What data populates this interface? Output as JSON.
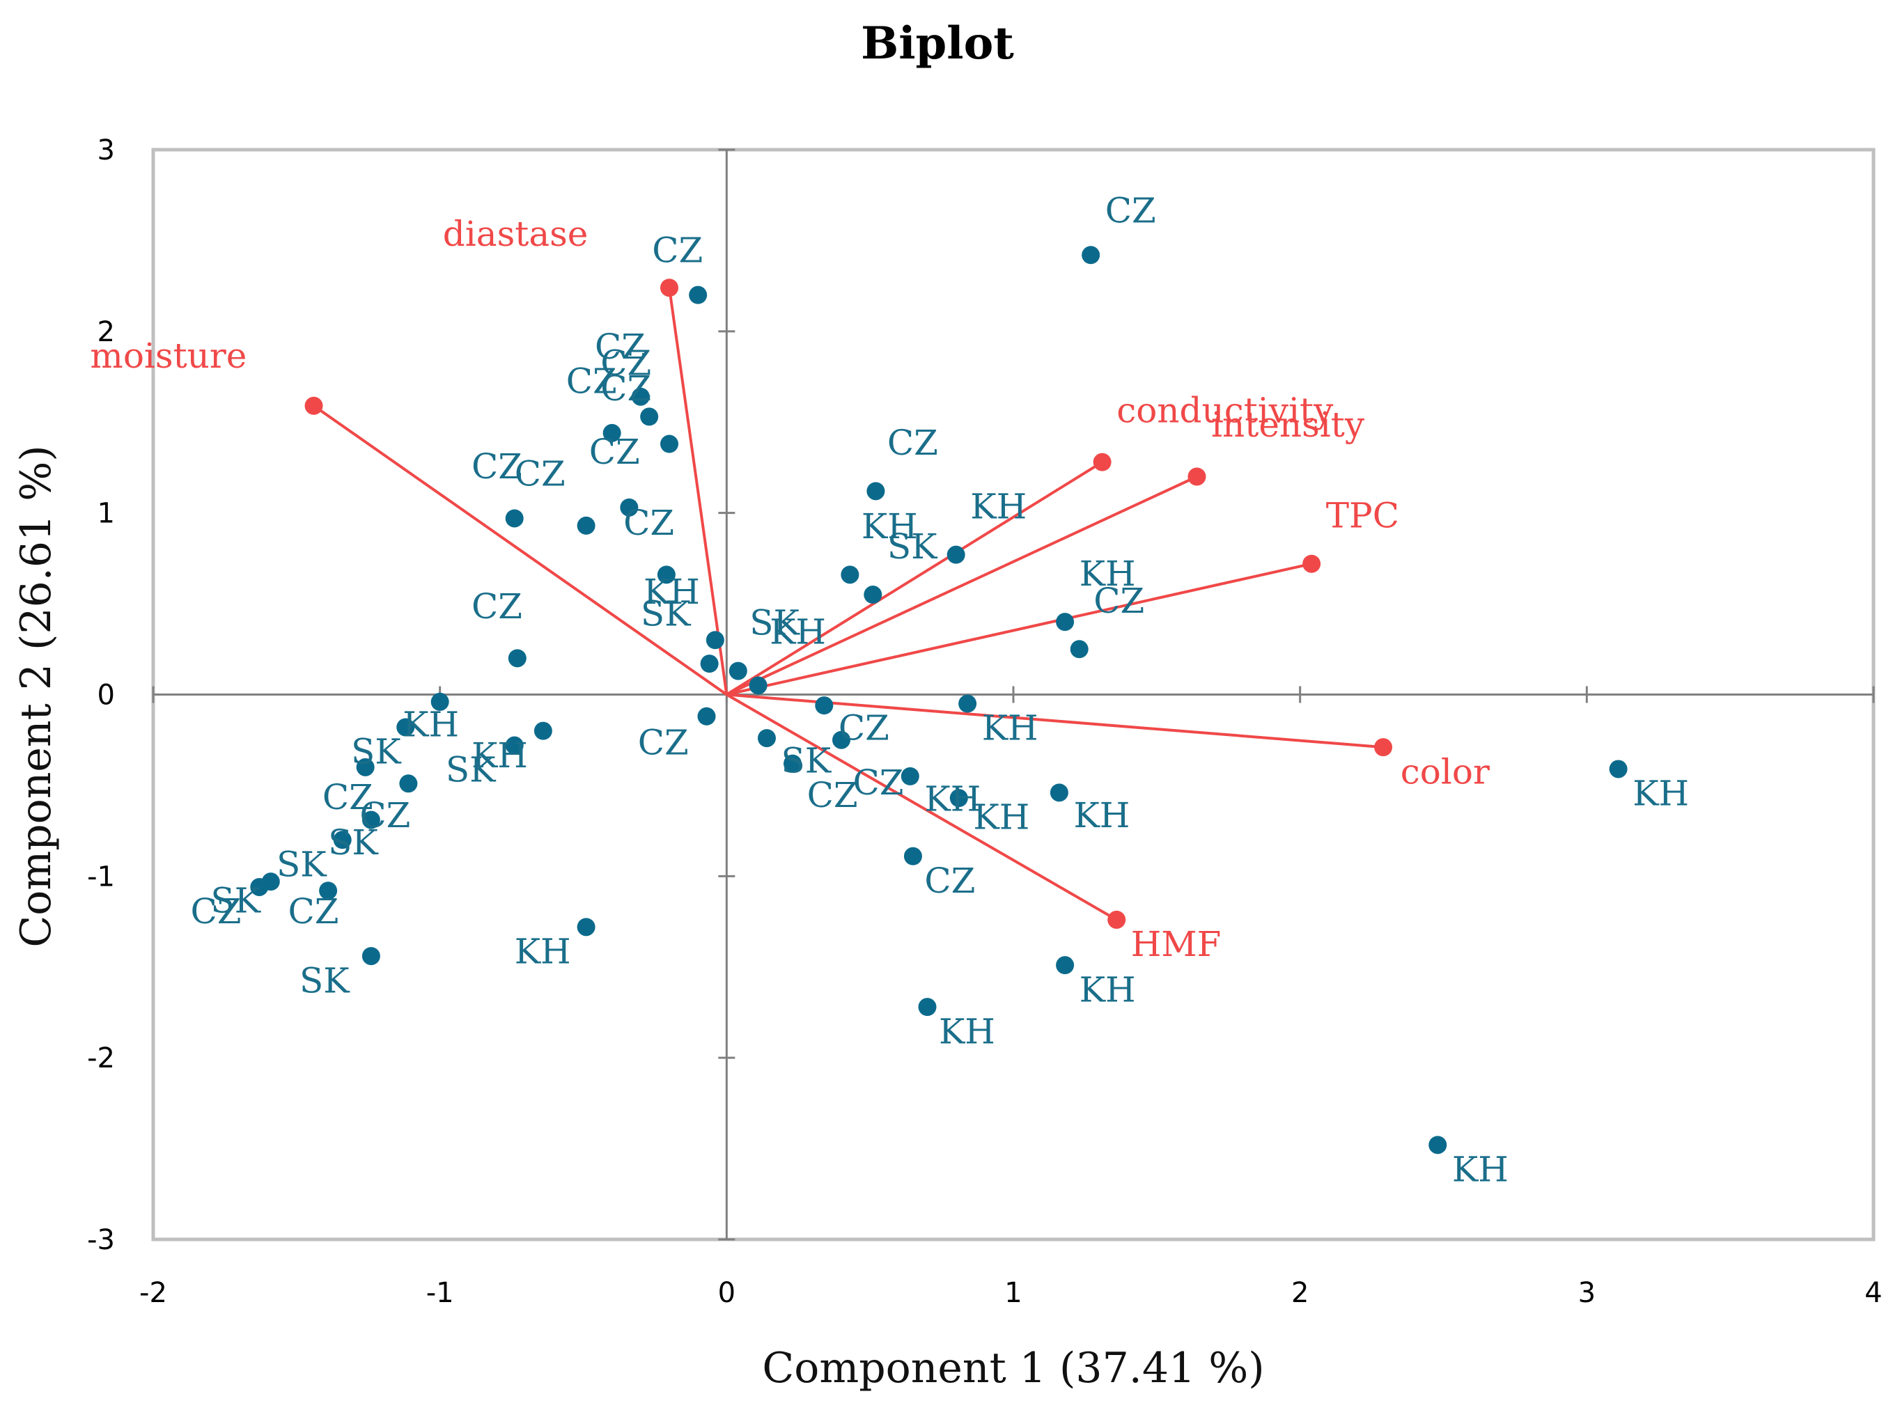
{
  "chart_data": {
    "type": "scatter",
    "title": "Biplot",
    "xlabel": "Component 1 (37.41 %)",
    "ylabel": "Component 2 (26.61 %)",
    "xlim": [
      -2,
      4
    ],
    "ylim": [
      -3,
      3
    ],
    "xticks": [
      -2,
      -1,
      0,
      1,
      2,
      3,
      4
    ],
    "yticks": [
      -3,
      -2,
      -1,
      0,
      1,
      2,
      3
    ],
    "colors": {
      "observations": "#0b6a8c",
      "observation_labels": "#1a6e8a",
      "variables": "#f04848",
      "axes": "#808080",
      "frame": "#bfbfbf"
    },
    "variables": [
      {
        "name": "diastase",
        "x": -0.2,
        "y": 2.24
      },
      {
        "name": "moisture",
        "x": -1.44,
        "y": 1.59
      },
      {
        "name": "conductivity",
        "x": 1.31,
        "y": 1.28
      },
      {
        "name": "intensity",
        "x": 1.64,
        "y": 1.2
      },
      {
        "name": "TPC",
        "x": 2.04,
        "y": 0.72
      },
      {
        "name": "color",
        "x": 2.29,
        "y": -0.29
      },
      {
        "name": "HMF",
        "x": 1.36,
        "y": -1.24
      }
    ],
    "observations": [
      {
        "label": "CZ",
        "x": 1.27,
        "y": 2.42
      },
      {
        "label": "CZ",
        "x": -0.1,
        "y": 2.2
      },
      {
        "label": "CZ",
        "x": -0.3,
        "y": 1.64
      },
      {
        "label": "CZ",
        "x": -0.27,
        "y": 1.53
      },
      {
        "label": "CZ",
        "x": -0.4,
        "y": 1.44
      },
      {
        "label": "CZ",
        "x": -0.2,
        "y": 1.38
      },
      {
        "label": "CZ",
        "x": -0.34,
        "y": 1.03
      },
      {
        "label": "CZ",
        "x": -0.74,
        "y": 0.97
      },
      {
        "label": "CZ",
        "x": -0.49,
        "y": 0.93
      },
      {
        "label": "CZ",
        "x": 0.52,
        "y": 1.12
      },
      {
        "label": "KH",
        "x": 0.8,
        "y": 0.77
      },
      {
        "label": "KH",
        "x": 0.43,
        "y": 0.66
      },
      {
        "label": "KH",
        "x": -0.21,
        "y": 0.66
      },
      {
        "label": "SK",
        "x": 0.51,
        "y": 0.55
      },
      {
        "label": "SK",
        "x": -0.04,
        "y": 0.3
      },
      {
        "label": "SK",
        "x": -0.06,
        "y": 0.17
      },
      {
        "label": "KH",
        "x": 0.04,
        "y": 0.13
      },
      {
        "label": "KH",
        "x": 0.11,
        "y": 0.05
      },
      {
        "label": "KH",
        "x": 1.18,
        "y": 0.4
      },
      {
        "label": "CZ",
        "x": 1.23,
        "y": 0.25
      },
      {
        "label": "CZ",
        "x": -0.73,
        "y": 0.2
      },
      {
        "label": "KH",
        "x": 0.84,
        "y": -0.05
      },
      {
        "label": "KH",
        "x": 0.34,
        "y": -0.06
      },
      {
        "label": "CZ",
        "x": -0.07,
        "y": -0.12
      },
      {
        "label": "KH",
        "x": -1.0,
        "y": -0.04
      },
      {
        "label": "KH",
        "x": -1.12,
        "y": -0.18
      },
      {
        "label": "KH",
        "x": -0.64,
        "y": -0.2
      },
      {
        "label": "SK",
        "x": -0.74,
        "y": -0.28
      },
      {
        "label": "SK",
        "x": -1.26,
        "y": -0.4
      },
      {
        "label": "CZ",
        "x": -1.11,
        "y": -0.49
      },
      {
        "label": "CZ",
        "x": -1.24,
        "y": -0.69
      },
      {
        "label": "SK",
        "x": -1.34,
        "y": -0.8
      },
      {
        "label": "SK",
        "x": -1.59,
        "y": -1.03
      },
      {
        "label": "SK",
        "x": -1.63,
        "y": -1.06
      },
      {
        "label": "CZ",
        "x": -1.39,
        "y": -1.08
      },
      {
        "label": "SK",
        "x": -1.24,
        "y": -1.44
      },
      {
        "label": "KH",
        "x": -0.49,
        "y": -1.28
      },
      {
        "label": "CZ",
        "x": 0.14,
        "y": -0.24
      },
      {
        "label": "CZ",
        "x": 0.4,
        "y": -0.25
      },
      {
        "label": "SK",
        "x": 0.23,
        "y": -0.38
      },
      {
        "label": "CZ",
        "x": 0.64,
        "y": -0.45
      },
      {
        "label": "KH",
        "x": 0.81,
        "y": -0.57
      },
      {
        "label": "KH",
        "x": 1.16,
        "y": -0.54
      },
      {
        "label": "KH",
        "x": 3.11,
        "y": -0.41
      },
      {
        "label": "CZ",
        "x": 0.65,
        "y": -0.89
      },
      {
        "label": "KH",
        "x": 1.18,
        "y": -1.49
      },
      {
        "label": "KH",
        "x": 0.7,
        "y": -1.72
      },
      {
        "label": "KH",
        "x": 2.48,
        "y": -2.48
      }
    ],
    "obs_labels": [
      {
        "text": "CZ",
        "x": 1.32,
        "y": 2.6
      },
      {
        "text": "CZ",
        "x": -0.26,
        "y": 2.38
      },
      {
        "text": "CZ",
        "x": -0.46,
        "y": 1.85
      },
      {
        "text": "CZ",
        "x": -0.44,
        "y": 1.76
      },
      {
        "text": "CZ",
        "x": -0.56,
        "y": 1.66
      },
      {
        "text": "CZ",
        "x": -0.44,
        "y": 1.62
      },
      {
        "text": "CZ",
        "x": -0.48,
        "y": 1.27
      },
      {
        "text": "CZ",
        "x": -0.89,
        "y": 1.19
      },
      {
        "text": "CZ",
        "x": -0.74,
        "y": 1.15
      },
      {
        "text": "CZ",
        "x": -0.36,
        "y": 0.88
      },
      {
        "text": "CZ",
        "x": 0.56,
        "y": 1.32
      },
      {
        "text": "KH",
        "x": 0.85,
        "y": 0.97
      },
      {
        "text": "KH",
        "x": 0.47,
        "y": 0.86
      },
      {
        "text": "SK",
        "x": 0.56,
        "y": 0.75
      },
      {
        "text": "KH",
        "x": -0.29,
        "y": 0.5
      },
      {
        "text": "SK",
        "x": -0.3,
        "y": 0.38
      },
      {
        "text": "CZ",
        "x": -0.89,
        "y": 0.42
      },
      {
        "text": "SK",
        "x": 0.08,
        "y": 0.33
      },
      {
        "text": "KH",
        "x": 0.15,
        "y": 0.28
      },
      {
        "text": "KH",
        "x": 1.23,
        "y": 0.6
      },
      {
        "text": "CZ",
        "x": 1.28,
        "y": 0.45
      },
      {
        "text": "KH",
        "x": 0.89,
        "y": -0.25
      },
      {
        "text": "CZ",
        "x": -0.31,
        "y": -0.33
      },
      {
        "text": "KH",
        "x": -1.13,
        "y": -0.23
      },
      {
        "text": "KH",
        "x": -0.89,
        "y": -0.4
      },
      {
        "text": "SK",
        "x": -0.98,
        "y": -0.48
      },
      {
        "text": "SK",
        "x": -1.31,
        "y": -0.38
      },
      {
        "text": "CZ",
        "x": -1.41,
        "y": -0.63
      },
      {
        "text": "CZ",
        "x": -1.28,
        "y": -0.73
      },
      {
        "text": "SK",
        "x": -1.39,
        "y": -0.88
      },
      {
        "text": "SK",
        "x": -1.57,
        "y": -1.0
      },
      {
        "text": "SK",
        "x": -1.8,
        "y": -1.2
      },
      {
        "text": "CZ",
        "x": -1.87,
        "y": -1.26
      },
      {
        "text": "CZ",
        "x": -1.53,
        "y": -1.26
      },
      {
        "text": "SK",
        "x": -1.49,
        "y": -1.64
      },
      {
        "text": "KH",
        "x": -0.74,
        "y": -1.48
      },
      {
        "text": "CZ",
        "x": 0.39,
        "y": -0.25
      },
      {
        "text": "SK",
        "x": 0.19,
        "y": -0.43
      },
      {
        "text": "CZ",
        "x": 0.44,
        "y": -0.55
      },
      {
        "text": "CZ",
        "x": 0.28,
        "y": -0.62
      },
      {
        "text": "KH",
        "x": 0.69,
        "y": -0.64
      },
      {
        "text": "KH",
        "x": 0.86,
        "y": -0.74
      },
      {
        "text": "KH",
        "x": 1.21,
        "y": -0.73
      },
      {
        "text": "KH",
        "x": 3.16,
        "y": -0.61
      },
      {
        "text": "CZ",
        "x": 0.69,
        "y": -1.09
      },
      {
        "text": "KH",
        "x": 1.23,
        "y": -1.69
      },
      {
        "text": "KH",
        "x": 0.74,
        "y": -1.92
      },
      {
        "text": "KH",
        "x": 2.53,
        "y": -2.68
      }
    ],
    "var_labels": [
      {
        "text": "diastase",
        "x": -0.99,
        "y": 2.47
      },
      {
        "text": "moisture",
        "x": -2.22,
        "y": 1.8
      },
      {
        "text": "conductivity",
        "x": 1.36,
        "y": 1.5
      },
      {
        "text": "intensity",
        "x": 1.69,
        "y": 1.42
      },
      {
        "text": "TPC",
        "x": 2.09,
        "y": 0.92
      },
      {
        "text": "color",
        "x": 2.35,
        "y": -0.49
      },
      {
        "text": "HMF",
        "x": 1.41,
        "y": -1.44
      }
    ]
  }
}
